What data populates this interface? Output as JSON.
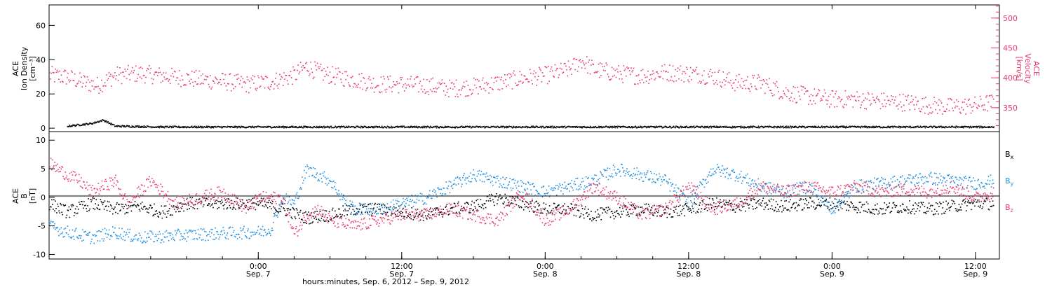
{
  "colors": {
    "black": "#000000",
    "blue": "#1f8fe0",
    "pink": "#e8396a"
  },
  "figure": {
    "xlabel": "hours:minutes, Sep.  6, 2012 – Sep.  9, 2012"
  },
  "chart_data": [
    {
      "type": "scatter",
      "panel": "top",
      "ylabel_lines": [
        "ACE",
        "Ion Density",
        "[cm⁻³]"
      ],
      "yticks": [
        "0",
        "20",
        "40",
        "60"
      ],
      "ylim": [
        -2,
        72
      ],
      "y2label_lines": [
        "ACE",
        "Velocity",
        "[km/s]"
      ],
      "y2ticks": [
        "350",
        "400",
        "450",
        "500"
      ],
      "y2lim": [
        310,
        522
      ],
      "xlim_hours": [
        -17.5,
        62
      ],
      "series": [
        {
          "color": "#000000",
          "points": [
            [
              -16,
              1.5
            ],
            [
              -14,
              3
            ],
            [
              -13,
              5
            ],
            [
              -12,
              1.5
            ],
            [
              -8,
              1
            ],
            [
              0,
              1
            ],
            [
              12,
              1
            ],
            [
              24,
              1
            ],
            [
              36,
              1
            ],
            [
              48,
              1
            ],
            [
              56,
              1
            ],
            [
              60,
              1
            ],
            [
              61.5,
              1
            ]
          ]
        },
        {
          "color": "#e8396a",
          "points": [
            [
              -17.5,
              405
            ],
            [
              -16,
              402
            ],
            [
              -15,
              395
            ],
            [
              -13.5,
              388
            ],
            [
              -12,
              405
            ],
            [
              -10,
              408
            ],
            [
              -7,
              402
            ],
            [
              -5,
              398
            ],
            [
              -3,
              395
            ],
            [
              -1,
              390
            ],
            [
              1,
              394
            ],
            [
              3,
              405
            ],
            [
              4,
              420
            ],
            [
              5,
              410
            ],
            [
              6,
              405
            ],
            [
              8,
              398
            ],
            [
              10,
              390
            ],
            [
              12,
              390
            ],
            [
              14,
              388
            ],
            [
              16,
              383
            ],
            [
              18,
              386
            ],
            [
              20,
              392
            ],
            [
              22,
              400
            ],
            [
              24,
              405
            ],
            [
              26,
              415
            ],
            [
              27,
              430
            ],
            [
              28,
              415
            ],
            [
              30,
              408
            ],
            [
              32,
              404
            ],
            [
              34,
              410
            ],
            [
              36,
              408
            ],
            [
              38,
              404
            ],
            [
              40,
              392
            ],
            [
              42,
              392
            ],
            [
              44,
              377
            ],
            [
              46,
              370
            ],
            [
              48,
              365
            ],
            [
              50,
              365
            ],
            [
              52,
              362
            ],
            [
              54,
              360
            ],
            [
              56,
              355
            ],
            [
              58,
              352
            ],
            [
              60,
              355
            ],
            [
              61.5,
              360
            ]
          ]
        }
      ]
    },
    {
      "type": "scatter",
      "panel": "bottom",
      "ylabel_lines": [
        "ACE",
        "B",
        "[nT]"
      ],
      "yticks": [
        "-10",
        "-5",
        "0",
        "5",
        "10"
      ],
      "ylim": [
        -10.8,
        11.5
      ],
      "legend": [
        "Bx",
        "By",
        "Bz"
      ],
      "legend_placement": "right",
      "xticks": [
        {
          "top": "0:00",
          "bottom": "Sep. 7"
        },
        {
          "top": "12:00",
          "bottom": "Sep. 7"
        },
        {
          "top": "0:00",
          "bottom": "Sep. 8"
        },
        {
          "top": "12:00",
          "bottom": "Sep. 8"
        },
        {
          "top": "0:00",
          "bottom": "Sep. 9"
        },
        {
          "top": "12:00",
          "bottom": "Sep. 9"
        }
      ],
      "xlim_hours": [
        -17.5,
        62
      ],
      "series": [
        {
          "name": "Bx",
          "color": "#000000",
          "points": [
            [
              -17.5,
              -1
            ],
            [
              -16,
              -2.5
            ],
            [
              -14,
              -1
            ],
            [
              -12,
              -2
            ],
            [
              -10,
              -1.5
            ],
            [
              -8,
              -2.5
            ],
            [
              -6,
              -1
            ],
            [
              -4,
              -1
            ],
            [
              -2,
              -1
            ],
            [
              0,
              -1
            ],
            [
              2,
              -2
            ],
            [
              4,
              -3.5
            ],
            [
              6,
              -3
            ],
            [
              8,
              -2
            ],
            [
              10,
              -2
            ],
            [
              12,
              -2.5
            ],
            [
              14,
              -3
            ],
            [
              16,
              -2
            ],
            [
              18,
              -1.5
            ],
            [
              20,
              0
            ],
            [
              22,
              -1
            ],
            [
              24,
              -2
            ],
            [
              26,
              -2
            ],
            [
              28,
              -3
            ],
            [
              30,
              -2.5
            ],
            [
              32,
              -2
            ],
            [
              34,
              -2.5
            ],
            [
              36,
              -2
            ],
            [
              38,
              -1
            ],
            [
              40,
              -1.5
            ],
            [
              42,
              -1
            ],
            [
              44,
              -1.5
            ],
            [
              46,
              -1
            ],
            [
              48,
              -1
            ],
            [
              50,
              -1.5
            ],
            [
              52,
              -2
            ],
            [
              54,
              -1.5
            ],
            [
              56,
              -2
            ],
            [
              58,
              -1.5
            ],
            [
              60,
              -1
            ],
            [
              61.5,
              -1
            ]
          ]
        },
        {
          "name": "By",
          "color": "#1f8fe0",
          "points": [
            [
              -17.5,
              -5
            ],
            [
              -16,
              -6
            ],
            [
              -14,
              -7
            ],
            [
              -12,
              -6
            ],
            [
              -10,
              -7
            ],
            [
              -6,
              -6.5
            ],
            [
              0,
              -6
            ],
            [
              1,
              -5.5
            ],
            [
              2,
              0
            ],
            [
              3,
              -1
            ],
            [
              4,
              5
            ],
            [
              6,
              3
            ],
            [
              7,
              0
            ],
            [
              8,
              -2
            ],
            [
              10,
              -2
            ],
            [
              12,
              -1
            ],
            [
              14,
              0
            ],
            [
              16,
              2
            ],
            [
              18,
              4
            ],
            [
              20,
              3
            ],
            [
              22,
              2
            ],
            [
              24,
              1
            ],
            [
              26,
              2
            ],
            [
              28,
              3
            ],
            [
              30,
              5
            ],
            [
              32,
              4
            ],
            [
              34,
              3
            ],
            [
              36,
              -1
            ],
            [
              38,
              5
            ],
            [
              40,
              4
            ],
            [
              42,
              2
            ],
            [
              44,
              1
            ],
            [
              46,
              2
            ],
            [
              48,
              -2
            ],
            [
              50,
              2
            ],
            [
              52,
              2.5
            ],
            [
              54,
              3
            ],
            [
              56,
              3.5
            ],
            [
              58,
              3
            ],
            [
              60,
              2.5
            ],
            [
              61.5,
              3
            ]
          ]
        },
        {
          "name": "Bz",
          "color": "#e8396a",
          "points": [
            [
              -17.5,
              6
            ],
            [
              -16,
              4
            ],
            [
              -15,
              3
            ],
            [
              -14,
              1
            ],
            [
              -12,
              3
            ],
            [
              -11,
              -1
            ],
            [
              -10,
              1
            ],
            [
              -9,
              3
            ],
            [
              -7,
              -1
            ],
            [
              -5,
              0
            ],
            [
              -3,
              1
            ],
            [
              -1,
              -2
            ],
            [
              0,
              0
            ],
            [
              2,
              0
            ],
            [
              3,
              -6.5
            ],
            [
              4,
              -3
            ],
            [
              5,
              -2
            ],
            [
              6,
              -4
            ],
            [
              8,
              -5
            ],
            [
              10,
              -4
            ],
            [
              12,
              -3
            ],
            [
              14,
              -3
            ],
            [
              16,
              -2
            ],
            [
              18,
              -3
            ],
            [
              20,
              -4
            ],
            [
              22,
              1
            ],
            [
              24,
              -4
            ],
            [
              26,
              -2
            ],
            [
              28,
              2
            ],
            [
              30,
              0
            ],
            [
              32,
              -3
            ],
            [
              34,
              -2
            ],
            [
              36,
              2
            ],
            [
              38,
              -2
            ],
            [
              40,
              -1
            ],
            [
              42,
              2
            ],
            [
              44,
              1
            ],
            [
              46,
              2
            ],
            [
              48,
              1
            ],
            [
              50,
              2
            ],
            [
              52,
              1
            ],
            [
              54,
              1.5
            ],
            [
              56,
              1
            ],
            [
              58,
              2
            ],
            [
              60,
              0
            ],
            [
              61.5,
              1
            ]
          ]
        }
      ]
    }
  ]
}
